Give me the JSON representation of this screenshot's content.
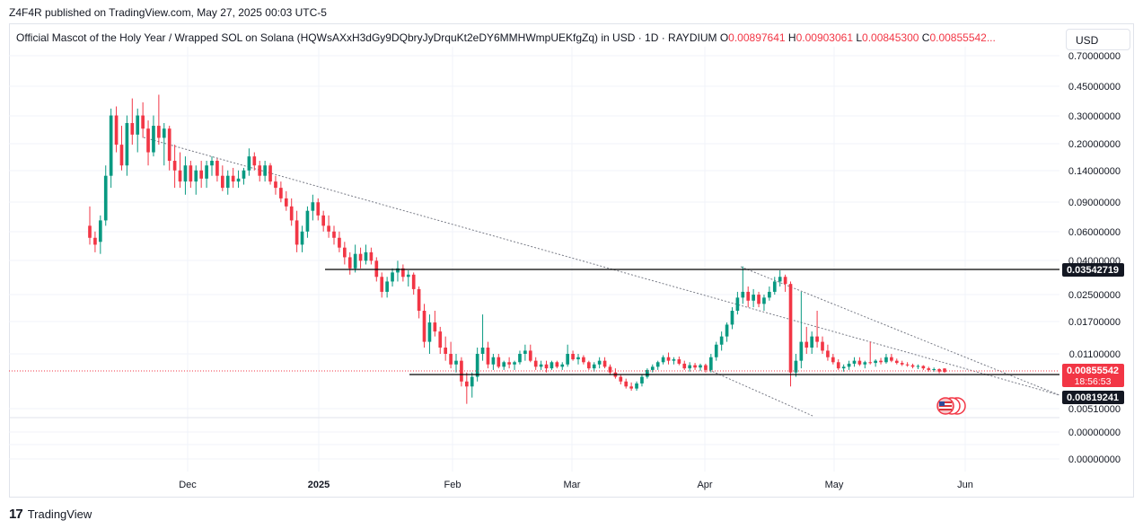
{
  "header": {
    "publish_line": "Z4F4R published on TradingView.com, May 27, 2025 00:03 UTC-5"
  },
  "legend": {
    "symbol": "Official Mascot of the Holy Year / Wrapped SOL on Solana (HQWsAXxH3dGy9DQbryJyDrquKt2eDY6MMHWmpUEKfgZq) in USD · 1D · RAYDIUM",
    "o_label": "O",
    "o_value": "0.00897641",
    "h_label": "H",
    "h_value": "0.00903061",
    "l_label": "L",
    "l_value": "0.00845300",
    "c_label": "C",
    "c_value": "0.00855542..."
  },
  "currency_button": "USD",
  "footer": {
    "brand": "TradingView",
    "logo_mark": "17"
  },
  "colors": {
    "up": "#089981",
    "down": "#f23645",
    "grid": "#f0f3fa",
    "text": "#131722",
    "trendline": "#787b86"
  },
  "chart_data": {
    "type": "candlestick",
    "scale": "log",
    "y_tick_labels": [
      "0.70000000",
      "0.45000000",
      "0.30000000",
      "0.20000000",
      "0.14000000",
      "0.09000000",
      "0.06000000",
      "0.04000000",
      "0.02500000",
      "0.01700000",
      "0.01100000",
      "0.00510000",
      "0.00000000",
      "0.00000000"
    ],
    "x_tick_labels": [
      "Dec",
      "2025",
      "Feb",
      "Mar",
      "Apr",
      "May",
      "Jun"
    ],
    "price_tags": [
      {
        "label": "0.03542719",
        "style": "dark"
      },
      {
        "label": "0.00855542",
        "sub": "18:56:53",
        "style": "red"
      },
      {
        "label": "0.00819241",
        "style": "dark"
      }
    ],
    "horizontal_levels": [
      0.03542719,
      0.00819241
    ],
    "last_price": 0.00855542,
    "grid": true,
    "candles": [
      {
        "o": 0.065,
        "h": 0.085,
        "l": 0.05,
        "c": 0.055
      },
      {
        "o": 0.055,
        "h": 0.06,
        "l": 0.045,
        "c": 0.05
      },
      {
        "o": 0.052,
        "h": 0.075,
        "l": 0.044,
        "c": 0.07
      },
      {
        "o": 0.07,
        "h": 0.15,
        "l": 0.065,
        "c": 0.13
      },
      {
        "o": 0.13,
        "h": 0.33,
        "l": 0.11,
        "c": 0.3
      },
      {
        "o": 0.3,
        "h": 0.34,
        "l": 0.18,
        "c": 0.2
      },
      {
        "o": 0.2,
        "h": 0.26,
        "l": 0.14,
        "c": 0.15
      },
      {
        "o": 0.15,
        "h": 0.3,
        "l": 0.13,
        "c": 0.27
      },
      {
        "o": 0.27,
        "h": 0.38,
        "l": 0.2,
        "c": 0.23
      },
      {
        "o": 0.23,
        "h": 0.33,
        "l": 0.18,
        "c": 0.3
      },
      {
        "o": 0.3,
        "h": 0.36,
        "l": 0.22,
        "c": 0.25
      },
      {
        "o": 0.25,
        "h": 0.28,
        "l": 0.15,
        "c": 0.18
      },
      {
        "o": 0.18,
        "h": 0.3,
        "l": 0.17,
        "c": 0.26
      },
      {
        "o": 0.26,
        "h": 0.4,
        "l": 0.2,
        "c": 0.22
      },
      {
        "o": 0.22,
        "h": 0.27,
        "l": 0.15,
        "c": 0.25
      },
      {
        "o": 0.25,
        "h": 0.26,
        "l": 0.14,
        "c": 0.16
      },
      {
        "o": 0.16,
        "h": 0.2,
        "l": 0.11,
        "c": 0.14
      },
      {
        "o": 0.14,
        "h": 0.18,
        "l": 0.11,
        "c": 0.12
      },
      {
        "o": 0.12,
        "h": 0.17,
        "l": 0.1,
        "c": 0.15
      },
      {
        "o": 0.15,
        "h": 0.16,
        "l": 0.11,
        "c": 0.12
      },
      {
        "o": 0.12,
        "h": 0.15,
        "l": 0.1,
        "c": 0.14
      },
      {
        "o": 0.14,
        "h": 0.16,
        "l": 0.11,
        "c": 0.125
      },
      {
        "o": 0.125,
        "h": 0.16,
        "l": 0.11,
        "c": 0.15
      },
      {
        "o": 0.15,
        "h": 0.17,
        "l": 0.13,
        "c": 0.16
      },
      {
        "o": 0.16,
        "h": 0.165,
        "l": 0.12,
        "c": 0.13
      },
      {
        "o": 0.13,
        "h": 0.15,
        "l": 0.105,
        "c": 0.11
      },
      {
        "o": 0.11,
        "h": 0.14,
        "l": 0.1,
        "c": 0.13
      },
      {
        "o": 0.13,
        "h": 0.145,
        "l": 0.11,
        "c": 0.12
      },
      {
        "o": 0.12,
        "h": 0.14,
        "l": 0.11,
        "c": 0.125
      },
      {
        "o": 0.125,
        "h": 0.145,
        "l": 0.115,
        "c": 0.14
      },
      {
        "o": 0.14,
        "h": 0.19,
        "l": 0.13,
        "c": 0.17
      },
      {
        "o": 0.17,
        "h": 0.18,
        "l": 0.14,
        "c": 0.15
      },
      {
        "o": 0.15,
        "h": 0.16,
        "l": 0.12,
        "c": 0.13
      },
      {
        "o": 0.13,
        "h": 0.16,
        "l": 0.12,
        "c": 0.15
      },
      {
        "o": 0.15,
        "h": 0.155,
        "l": 0.115,
        "c": 0.12
      },
      {
        "o": 0.12,
        "h": 0.13,
        "l": 0.1,
        "c": 0.11
      },
      {
        "o": 0.11,
        "h": 0.12,
        "l": 0.09,
        "c": 0.095
      },
      {
        "o": 0.095,
        "h": 0.105,
        "l": 0.08,
        "c": 0.085
      },
      {
        "o": 0.085,
        "h": 0.095,
        "l": 0.065,
        "c": 0.07
      },
      {
        "o": 0.07,
        "h": 0.08,
        "l": 0.045,
        "c": 0.05
      },
      {
        "o": 0.05,
        "h": 0.065,
        "l": 0.045,
        "c": 0.06
      },
      {
        "o": 0.06,
        "h": 0.085,
        "l": 0.055,
        "c": 0.08
      },
      {
        "o": 0.08,
        "h": 0.1,
        "l": 0.07,
        "c": 0.09
      },
      {
        "o": 0.09,
        "h": 0.095,
        "l": 0.07,
        "c": 0.075
      },
      {
        "o": 0.075,
        "h": 0.08,
        "l": 0.06,
        "c": 0.065
      },
      {
        "o": 0.065,
        "h": 0.075,
        "l": 0.055,
        "c": 0.06
      },
      {
        "o": 0.06,
        "h": 0.065,
        "l": 0.05,
        "c": 0.055
      },
      {
        "o": 0.055,
        "h": 0.06,
        "l": 0.045,
        "c": 0.048
      },
      {
        "o": 0.048,
        "h": 0.052,
        "l": 0.038,
        "c": 0.042
      },
      {
        "o": 0.042,
        "h": 0.045,
        "l": 0.033,
        "c": 0.036
      },
      {
        "o": 0.036,
        "h": 0.05,
        "l": 0.034,
        "c": 0.044
      },
      {
        "o": 0.044,
        "h": 0.048,
        "l": 0.036,
        "c": 0.04
      },
      {
        "o": 0.04,
        "h": 0.05,
        "l": 0.038,
        "c": 0.045
      },
      {
        "o": 0.045,
        "h": 0.048,
        "l": 0.038,
        "c": 0.04
      },
      {
        "o": 0.04,
        "h": 0.042,
        "l": 0.03,
        "c": 0.032
      },
      {
        "o": 0.032,
        "h": 0.034,
        "l": 0.024,
        "c": 0.026
      },
      {
        "o": 0.026,
        "h": 0.032,
        "l": 0.024,
        "c": 0.03
      },
      {
        "o": 0.03,
        "h": 0.036,
        "l": 0.028,
        "c": 0.034
      },
      {
        "o": 0.034,
        "h": 0.04,
        "l": 0.03,
        "c": 0.036
      },
      {
        "o": 0.036,
        "h": 0.038,
        "l": 0.03,
        "c": 0.032
      },
      {
        "o": 0.032,
        "h": 0.035,
        "l": 0.028,
        "c": 0.033
      },
      {
        "o": 0.033,
        "h": 0.034,
        "l": 0.025,
        "c": 0.027
      },
      {
        "o": 0.027,
        "h": 0.028,
        "l": 0.018,
        "c": 0.02
      },
      {
        "o": 0.02,
        "h": 0.022,
        "l": 0.012,
        "c": 0.013
      },
      {
        "o": 0.013,
        "h": 0.019,
        "l": 0.011,
        "c": 0.017
      },
      {
        "o": 0.017,
        "h": 0.02,
        "l": 0.014,
        "c": 0.015
      },
      {
        "o": 0.015,
        "h": 0.016,
        "l": 0.011,
        "c": 0.012
      },
      {
        "o": 0.012,
        "h": 0.014,
        "l": 0.01,
        "c": 0.011
      },
      {
        "o": 0.011,
        "h": 0.013,
        "l": 0.009,
        "c": 0.0095
      },
      {
        "o": 0.0095,
        "h": 0.011,
        "l": 0.0085,
        "c": 0.01
      },
      {
        "o": 0.01,
        "h": 0.0105,
        "l": 0.007,
        "c": 0.0075
      },
      {
        "o": 0.0075,
        "h": 0.0085,
        "l": 0.0055,
        "c": 0.007
      },
      {
        "o": 0.007,
        "h": 0.0085,
        "l": 0.006,
        "c": 0.008
      },
      {
        "o": 0.008,
        "h": 0.012,
        "l": 0.0075,
        "c": 0.011
      },
      {
        "o": 0.011,
        "h": 0.019,
        "l": 0.01,
        "c": 0.012
      },
      {
        "o": 0.012,
        "h": 0.013,
        "l": 0.009,
        "c": 0.0095
      },
      {
        "o": 0.0095,
        "h": 0.011,
        "l": 0.0088,
        "c": 0.0105
      },
      {
        "o": 0.0105,
        "h": 0.011,
        "l": 0.009,
        "c": 0.0092
      },
      {
        "o": 0.0092,
        "h": 0.01,
        "l": 0.0088,
        "c": 0.0098
      },
      {
        "o": 0.0098,
        "h": 0.0105,
        "l": 0.009,
        "c": 0.0095
      },
      {
        "o": 0.0095,
        "h": 0.01,
        "l": 0.0088,
        "c": 0.0098
      },
      {
        "o": 0.0098,
        "h": 0.0115,
        "l": 0.0095,
        "c": 0.011
      },
      {
        "o": 0.011,
        "h": 0.0125,
        "l": 0.01,
        "c": 0.0115
      },
      {
        "o": 0.0115,
        "h": 0.0125,
        "l": 0.0098,
        "c": 0.01
      },
      {
        "o": 0.01,
        "h": 0.0105,
        "l": 0.0088,
        "c": 0.0092
      },
      {
        "o": 0.0092,
        "h": 0.01,
        "l": 0.0088,
        "c": 0.0095
      },
      {
        "o": 0.0095,
        "h": 0.01,
        "l": 0.0085,
        "c": 0.009
      },
      {
        "o": 0.009,
        "h": 0.01,
        "l": 0.0088,
        "c": 0.0098
      },
      {
        "o": 0.0098,
        "h": 0.01,
        "l": 0.009,
        "c": 0.0092
      },
      {
        "o": 0.0092,
        "h": 0.0098,
        "l": 0.0088,
        "c": 0.0095
      },
      {
        "o": 0.0095,
        "h": 0.0125,
        "l": 0.0092,
        "c": 0.011
      },
      {
        "o": 0.011,
        "h": 0.0115,
        "l": 0.01,
        "c": 0.0102
      },
      {
        "o": 0.0102,
        "h": 0.011,
        "l": 0.0095,
        "c": 0.0105
      },
      {
        "o": 0.0105,
        "h": 0.0108,
        "l": 0.0095,
        "c": 0.0098
      },
      {
        "o": 0.0098,
        "h": 0.01,
        "l": 0.0088,
        "c": 0.009
      },
      {
        "o": 0.009,
        "h": 0.0098,
        "l": 0.0086,
        "c": 0.0095
      },
      {
        "o": 0.0095,
        "h": 0.0105,
        "l": 0.009,
        "c": 0.01
      },
      {
        "o": 0.01,
        "h": 0.0105,
        "l": 0.009,
        "c": 0.0092
      },
      {
        "o": 0.0092,
        "h": 0.0095,
        "l": 0.0082,
        "c": 0.0085
      },
      {
        "o": 0.0085,
        "h": 0.009,
        "l": 0.0078,
        "c": 0.008
      },
      {
        "o": 0.008,
        "h": 0.0082,
        "l": 0.0072,
        "c": 0.0075
      },
      {
        "o": 0.0075,
        "h": 0.0078,
        "l": 0.0068,
        "c": 0.007
      },
      {
        "o": 0.007,
        "h": 0.0074,
        "l": 0.0066,
        "c": 0.0068
      },
      {
        "o": 0.0068,
        "h": 0.0075,
        "l": 0.0066,
        "c": 0.0073
      },
      {
        "o": 0.0073,
        "h": 0.0082,
        "l": 0.007,
        "c": 0.008
      },
      {
        "o": 0.008,
        "h": 0.009,
        "l": 0.0078,
        "c": 0.0088
      },
      {
        "o": 0.0088,
        "h": 0.0095,
        "l": 0.0085,
        "c": 0.0092
      },
      {
        "o": 0.0092,
        "h": 0.01,
        "l": 0.0088,
        "c": 0.0098
      },
      {
        "o": 0.0098,
        "h": 0.0108,
        "l": 0.0095,
        "c": 0.0105
      },
      {
        "o": 0.0105,
        "h": 0.0112,
        "l": 0.0095,
        "c": 0.01
      },
      {
        "o": 0.01,
        "h": 0.0105,
        "l": 0.0095,
        "c": 0.0102
      },
      {
        "o": 0.0102,
        "h": 0.0106,
        "l": 0.0094,
        "c": 0.0096
      },
      {
        "o": 0.0096,
        "h": 0.01,
        "l": 0.0088,
        "c": 0.009
      },
      {
        "o": 0.009,
        "h": 0.0098,
        "l": 0.0086,
        "c": 0.0094
      },
      {
        "o": 0.0094,
        "h": 0.0097,
        "l": 0.0088,
        "c": 0.0091
      },
      {
        "o": 0.0091,
        "h": 0.0096,
        "l": 0.0087,
        "c": 0.0094
      },
      {
        "o": 0.0094,
        "h": 0.0096,
        "l": 0.0085,
        "c": 0.0088
      },
      {
        "o": 0.0088,
        "h": 0.011,
        "l": 0.0085,
        "c": 0.0105
      },
      {
        "o": 0.0105,
        "h": 0.013,
        "l": 0.01,
        "c": 0.0125
      },
      {
        "o": 0.0125,
        "h": 0.015,
        "l": 0.0115,
        "c": 0.014
      },
      {
        "o": 0.014,
        "h": 0.017,
        "l": 0.013,
        "c": 0.0165
      },
      {
        "o": 0.0165,
        "h": 0.021,
        "l": 0.0155,
        "c": 0.02
      },
      {
        "o": 0.02,
        "h": 0.026,
        "l": 0.019,
        "c": 0.024
      },
      {
        "o": 0.024,
        "h": 0.037,
        "l": 0.022,
        "c": 0.026
      },
      {
        "o": 0.026,
        "h": 0.028,
        "l": 0.021,
        "c": 0.023
      },
      {
        "o": 0.023,
        "h": 0.027,
        "l": 0.021,
        "c": 0.025
      },
      {
        "o": 0.025,
        "h": 0.026,
        "l": 0.021,
        "c": 0.022
      },
      {
        "o": 0.022,
        "h": 0.025,
        "l": 0.02,
        "c": 0.024
      },
      {
        "o": 0.024,
        "h": 0.028,
        "l": 0.023,
        "c": 0.026
      },
      {
        "o": 0.026,
        "h": 0.032,
        "l": 0.025,
        "c": 0.03
      },
      {
        "o": 0.03,
        "h": 0.035,
        "l": 0.028,
        "c": 0.032
      },
      {
        "o": 0.032,
        "h": 0.033,
        "l": 0.026,
        "c": 0.029
      },
      {
        "o": 0.029,
        "h": 0.03,
        "l": 0.007,
        "c": 0.0085
      },
      {
        "o": 0.0085,
        "h": 0.011,
        "l": 0.008,
        "c": 0.01
      },
      {
        "o": 0.01,
        "h": 0.026,
        "l": 0.009,
        "c": 0.013
      },
      {
        "o": 0.013,
        "h": 0.016,
        "l": 0.011,
        "c": 0.012
      },
      {
        "o": 0.012,
        "h": 0.015,
        "l": 0.011,
        "c": 0.014
      },
      {
        "o": 0.014,
        "h": 0.02,
        "l": 0.012,
        "c": 0.013
      },
      {
        "o": 0.013,
        "h": 0.014,
        "l": 0.011,
        "c": 0.0115
      },
      {
        "o": 0.0115,
        "h": 0.0125,
        "l": 0.01,
        "c": 0.0105
      },
      {
        "o": 0.0105,
        "h": 0.011,
        "l": 0.0095,
        "c": 0.0098
      },
      {
        "o": 0.0098,
        "h": 0.0102,
        "l": 0.0088,
        "c": 0.009
      },
      {
        "o": 0.009,
        "h": 0.0095,
        "l": 0.0086,
        "c": 0.0092
      },
      {
        "o": 0.0092,
        "h": 0.01,
        "l": 0.0088,
        "c": 0.0096
      },
      {
        "o": 0.0096,
        "h": 0.0105,
        "l": 0.0092,
        "c": 0.01
      },
      {
        "o": 0.01,
        "h": 0.0105,
        "l": 0.0093,
        "c": 0.0095
      },
      {
        "o": 0.0095,
        "h": 0.01,
        "l": 0.009,
        "c": 0.0098
      },
      {
        "o": 0.0098,
        "h": 0.013,
        "l": 0.0095,
        "c": 0.0097
      },
      {
        "o": 0.0097,
        "h": 0.0102,
        "l": 0.0092,
        "c": 0.01
      },
      {
        "o": 0.01,
        "h": 0.0104,
        "l": 0.0095,
        "c": 0.0098
      },
      {
        "o": 0.0098,
        "h": 0.011,
        "l": 0.0096,
        "c": 0.0105
      },
      {
        "o": 0.0105,
        "h": 0.011,
        "l": 0.0098,
        "c": 0.01
      },
      {
        "o": 0.01,
        "h": 0.0103,
        "l": 0.0095,
        "c": 0.0097
      },
      {
        "o": 0.0097,
        "h": 0.01,
        "l": 0.0093,
        "c": 0.0095
      },
      {
        "o": 0.0095,
        "h": 0.0098,
        "l": 0.0092,
        "c": 0.0094
      },
      {
        "o": 0.0094,
        "h": 0.0096,
        "l": 0.009,
        "c": 0.0092
      },
      {
        "o": 0.0092,
        "h": 0.0095,
        "l": 0.0089,
        "c": 0.0093
      },
      {
        "o": 0.0093,
        "h": 0.0094,
        "l": 0.0088,
        "c": 0.009
      },
      {
        "o": 0.009,
        "h": 0.0092,
        "l": 0.0086,
        "c": 0.0088
      },
      {
        "o": 0.0088,
        "h": 0.0091,
        "l": 0.0086,
        "c": 0.0089
      },
      {
        "o": 0.0089,
        "h": 0.009,
        "l": 0.0084,
        "c": 0.0086
      },
      {
        "o": 0.00897641,
        "h": 0.00903061,
        "l": 0.008453,
        "c": 0.00855542
      }
    ]
  }
}
